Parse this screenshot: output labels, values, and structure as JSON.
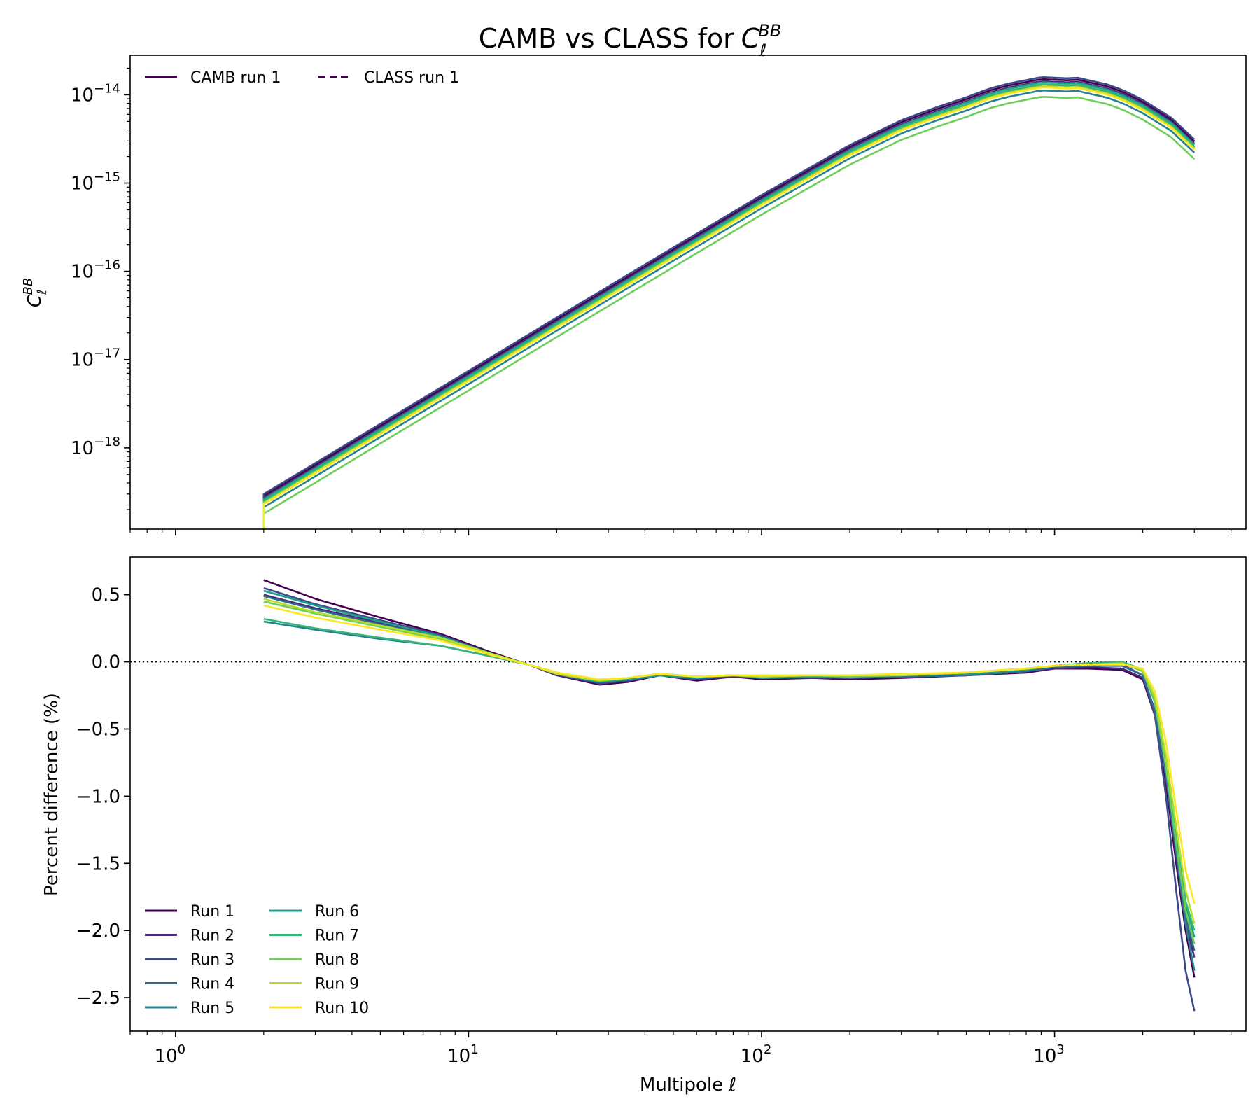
{
  "figure": {
    "title": "CAMB vs CLASS for",
    "title_symbol": {
      "base": "C",
      "sub": "ℓ",
      "sup": "BB"
    }
  },
  "chart_data": [
    {
      "type": "line",
      "panel": "top",
      "x_scale": "log",
      "y_scale": "log",
      "xlim": [
        0.7,
        4500
      ],
      "ylim": [
        1.2e-19,
        2.8e-14
      ],
      "ylabel": {
        "base": "C",
        "sub": "ℓ",
        "sup": "BB"
      },
      "y_ticks": [
        {
          "value": 1e-14,
          "label_base": "10",
          "label_exp": "−14"
        },
        {
          "value": 1e-15,
          "label_base": "10",
          "label_exp": "−15"
        },
        {
          "value": 1e-16,
          "label_base": "10",
          "label_exp": "−16"
        },
        {
          "value": 1e-17,
          "label_base": "10",
          "label_exp": "−17"
        },
        {
          "value": 1e-18,
          "label_base": "10",
          "label_exp": "−18"
        }
      ],
      "legend": {
        "placement": "upper-left",
        "columns": 2,
        "entries": [
          {
            "label": "CAMB run 1",
            "style": "solid",
            "color": "#440154"
          },
          {
            "label": "CLASS run 1",
            "style": "dashed",
            "color": "#440154"
          }
        ]
      },
      "ell": [
        2,
        3,
        5,
        10,
        20,
        50,
        100,
        200,
        300,
        400,
        500,
        600,
        700,
        800,
        900,
        1000,
        1100,
        1200,
        1300,
        1500,
        1700,
        2000,
        2500,
        3000
      ],
      "base_values": [
        2.5e-19,
        5.6e-19,
        1.56e-18,
        6.2e-18,
        2.5e-17,
        1.55e-16,
        6.1e-16,
        2.25e-15,
        4.3e-15,
        6.1e-15,
        7.8e-15,
        9.8e-15,
        1.12e-14,
        1.22e-14,
        1.32e-14,
        1.3e-14,
        1.28e-14,
        1.3e-14,
        1.22e-14,
        1.1e-14,
        9.5e-15,
        7.3e-15,
        4.6e-15,
        2.6e-15
      ],
      "series": [
        {
          "name": "Run 1",
          "color": "#440154",
          "scale": 1.14
        },
        {
          "name": "Run 2",
          "color": "#482878",
          "scale": 1.08
        },
        {
          "name": "Run 3",
          "color": "#3e4989",
          "scale": 1.2
        },
        {
          "name": "Run 4",
          "color": "#31688e",
          "scale": 0.98
        },
        {
          "name": "Run 5",
          "color": "#26828e",
          "scale": 0.85
        },
        {
          "name": "Run 6",
          "color": "#1f9e89",
          "scale": 1.05
        },
        {
          "name": "Run 7",
          "color": "#35b779",
          "scale": 1.0
        },
        {
          "name": "Run 8",
          "color": "#6ece58",
          "scale": 0.72
        },
        {
          "name": "Run 9",
          "color": "#b5de2b",
          "scale": 0.95
        },
        {
          "name": "Run 10",
          "color": "#fde725",
          "scale": 0.92
        }
      ]
    },
    {
      "type": "line",
      "panel": "bottom",
      "x_scale": "log",
      "y_scale": "linear",
      "xlim": [
        0.7,
        4500
      ],
      "ylim": [
        -2.75,
        0.78
      ],
      "xlabel": "Multipole ℓ",
      "ylabel": "Percent difference (%)",
      "x_ticks": [
        {
          "value": 1,
          "label_base": "10",
          "label_exp": "0"
        },
        {
          "value": 10,
          "label_base": "10",
          "label_exp": "1"
        },
        {
          "value": 100,
          "label_base": "10",
          "label_exp": "2"
        },
        {
          "value": 1000,
          "label_base": "10",
          "label_exp": "3"
        }
      ],
      "y_ticks": [
        {
          "value": 0.5,
          "label": "0.5"
        },
        {
          "value": 0.0,
          "label": "0.0"
        },
        {
          "value": -0.5,
          "label": "−0.5"
        },
        {
          "value": -1.0,
          "label": "−1.0"
        },
        {
          "value": -1.5,
          "label": "−1.5"
        },
        {
          "value": -2.0,
          "label": "−2.0"
        },
        {
          "value": -2.5,
          "label": "−2.5"
        }
      ],
      "reference_line": {
        "y": 0,
        "style": "dotted",
        "color": "#000000"
      },
      "legend": {
        "placement": "lower-left",
        "columns": 2
      },
      "ell": [
        2,
        3,
        5,
        8,
        12,
        16,
        20,
        28,
        35,
        45,
        60,
        80,
        100,
        150,
        200,
        300,
        500,
        800,
        1000,
        1300,
        1700,
        2000,
        2200,
        2400,
        2600,
        2800,
        3000
      ],
      "series": [
        {
          "name": "Run 1",
          "color": "#440154",
          "values": [
            0.61,
            0.47,
            0.33,
            0.21,
            0.07,
            -0.02,
            -0.1,
            -0.17,
            -0.15,
            -0.1,
            -0.14,
            -0.11,
            -0.13,
            -0.12,
            -0.13,
            -0.12,
            -0.1,
            -0.08,
            -0.05,
            -0.05,
            -0.06,
            -0.13,
            -0.4,
            -0.9,
            -1.5,
            -2.0,
            -2.35
          ]
        },
        {
          "name": "Run 2",
          "color": "#482878",
          "values": [
            0.5,
            0.4,
            0.29,
            0.19,
            0.06,
            -0.02,
            -0.1,
            -0.16,
            -0.14,
            -0.1,
            -0.13,
            -0.11,
            -0.12,
            -0.12,
            -0.12,
            -0.11,
            -0.1,
            -0.07,
            -0.05,
            -0.04,
            -0.05,
            -0.12,
            -0.38,
            -0.85,
            -1.45,
            -1.95,
            -2.2
          ]
        },
        {
          "name": "Run 3",
          "color": "#3e4989",
          "values": [
            0.55,
            0.43,
            0.31,
            0.2,
            0.06,
            -0.02,
            -0.09,
            -0.16,
            -0.14,
            -0.1,
            -0.13,
            -0.1,
            -0.12,
            -0.11,
            -0.12,
            -0.11,
            -0.1,
            -0.07,
            -0.04,
            -0.02,
            -0.02,
            -0.1,
            -0.4,
            -1.0,
            -1.7,
            -2.3,
            -2.6
          ]
        },
        {
          "name": "Run 4",
          "color": "#31688e",
          "values": [
            0.49,
            0.39,
            0.28,
            0.18,
            0.06,
            -0.02,
            -0.09,
            -0.15,
            -0.13,
            -0.1,
            -0.12,
            -0.1,
            -0.12,
            -0.11,
            -0.12,
            -0.11,
            -0.1,
            -0.07,
            -0.04,
            -0.03,
            -0.03,
            -0.1,
            -0.36,
            -0.85,
            -1.4,
            -1.9,
            -2.15
          ]
        },
        {
          "name": "Run 5",
          "color": "#26828e",
          "values": [
            0.3,
            0.24,
            0.17,
            0.12,
            0.04,
            -0.02,
            -0.08,
            -0.14,
            -0.12,
            -0.09,
            -0.12,
            -0.1,
            -0.11,
            -0.11,
            -0.11,
            -0.1,
            -0.09,
            -0.06,
            -0.03,
            -0.01,
            0.0,
            -0.07,
            -0.3,
            -0.8,
            -1.4,
            -1.95,
            -2.3
          ]
        },
        {
          "name": "Run 6",
          "color": "#1f9e89",
          "values": [
            0.53,
            0.42,
            0.3,
            0.19,
            0.06,
            -0.02,
            -0.09,
            -0.15,
            -0.13,
            -0.1,
            -0.12,
            -0.1,
            -0.12,
            -0.11,
            -0.11,
            -0.1,
            -0.09,
            -0.06,
            -0.03,
            -0.01,
            0.0,
            -0.06,
            -0.28,
            -0.75,
            -1.3,
            -1.8,
            -2.05
          ]
        },
        {
          "name": "Run 7",
          "color": "#35b779",
          "values": [
            0.32,
            0.25,
            0.18,
            0.12,
            0.04,
            -0.02,
            -0.08,
            -0.14,
            -0.12,
            -0.09,
            -0.11,
            -0.1,
            -0.11,
            -0.1,
            -0.11,
            -0.1,
            -0.08,
            -0.05,
            -0.03,
            -0.01,
            0.0,
            -0.06,
            -0.27,
            -0.72,
            -1.28,
            -1.78,
            -2.0
          ]
        },
        {
          "name": "Run 8",
          "color": "#6ece58",
          "values": [
            0.45,
            0.36,
            0.26,
            0.17,
            0.05,
            -0.02,
            -0.09,
            -0.14,
            -0.12,
            -0.09,
            -0.11,
            -0.1,
            -0.11,
            -0.1,
            -0.11,
            -0.1,
            -0.08,
            -0.05,
            -0.03,
            -0.02,
            -0.01,
            -0.07,
            -0.3,
            -0.78,
            -1.35,
            -1.85,
            -2.1
          ]
        },
        {
          "name": "Run 9",
          "color": "#b5de2b",
          "values": [
            0.47,
            0.37,
            0.27,
            0.18,
            0.06,
            -0.02,
            -0.09,
            -0.14,
            -0.12,
            -0.09,
            -0.11,
            -0.1,
            -0.11,
            -0.1,
            -0.1,
            -0.1,
            -0.08,
            -0.05,
            -0.03,
            -0.02,
            -0.01,
            -0.06,
            -0.26,
            -0.7,
            -1.22,
            -1.7,
            -1.95
          ]
        },
        {
          "name": "Run 10",
          "color": "#fde725",
          "values": [
            0.42,
            0.33,
            0.24,
            0.16,
            0.05,
            -0.02,
            -0.08,
            -0.13,
            -0.12,
            -0.09,
            -0.11,
            -0.1,
            -0.1,
            -0.1,
            -0.1,
            -0.09,
            -0.08,
            -0.05,
            -0.03,
            -0.02,
            -0.02,
            -0.05,
            -0.22,
            -0.6,
            -1.1,
            -1.55,
            -1.8
          ]
        }
      ]
    }
  ]
}
